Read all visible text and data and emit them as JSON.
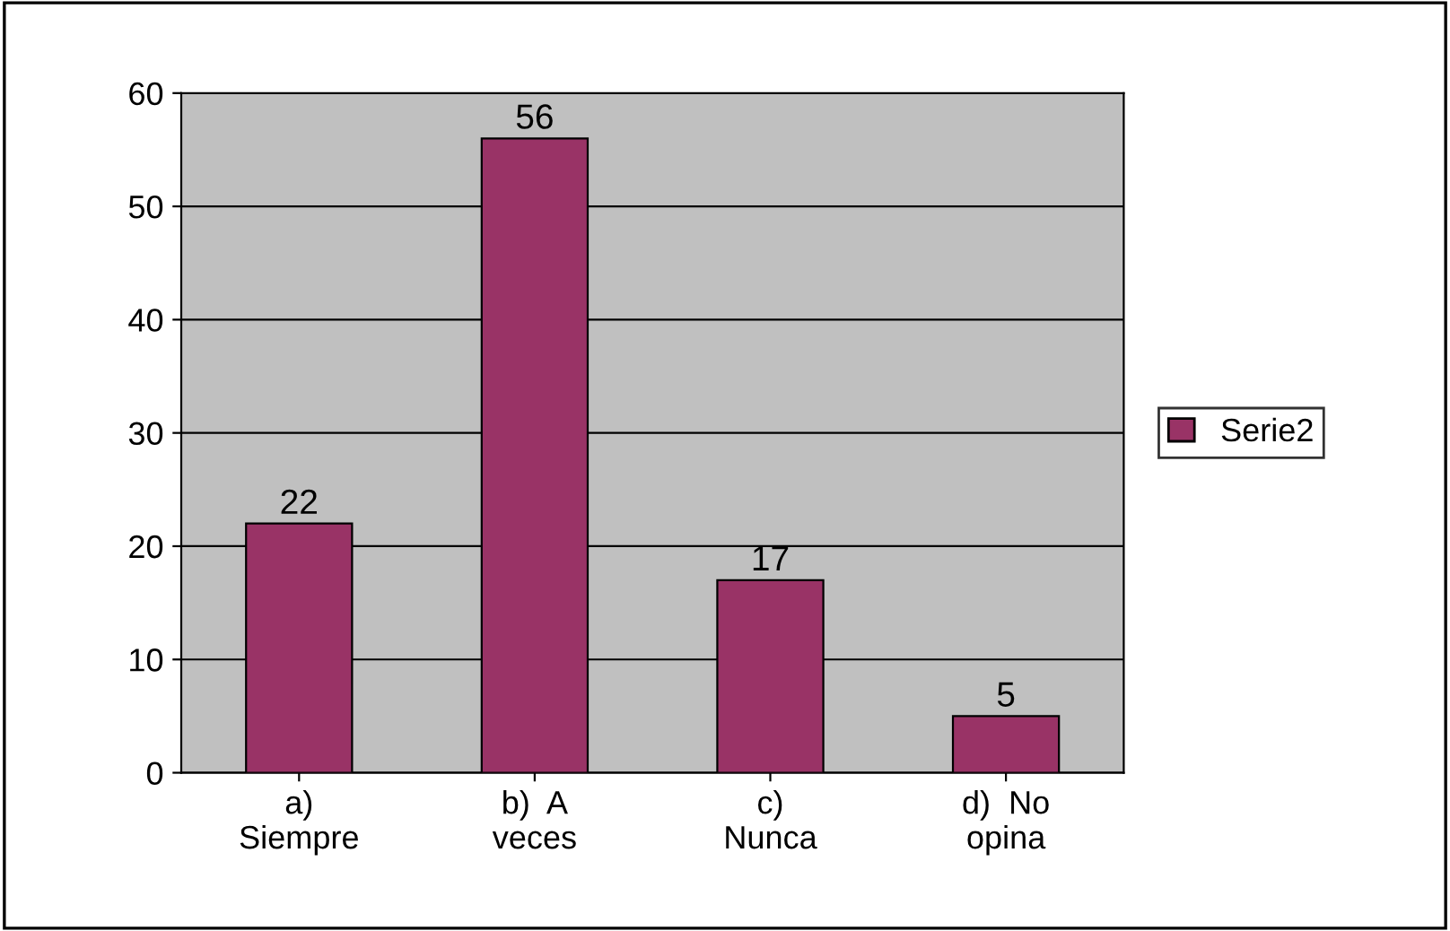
{
  "chart_data": {
    "type": "bar",
    "categories": [
      "a)\nSiempre",
      "b)  A\nveces",
      "c)\nNunca",
      "d)  No\nopina"
    ],
    "series": [
      {
        "name": "Serie2",
        "color": "#993366",
        "values": [
          22,
          56,
          17,
          5
        ]
      }
    ],
    "ylim": [
      0,
      60
    ],
    "yticks": [
      0,
      10,
      20,
      30,
      40,
      50,
      60
    ],
    "grid": "y",
    "legend": "right",
    "data_labels": true
  }
}
